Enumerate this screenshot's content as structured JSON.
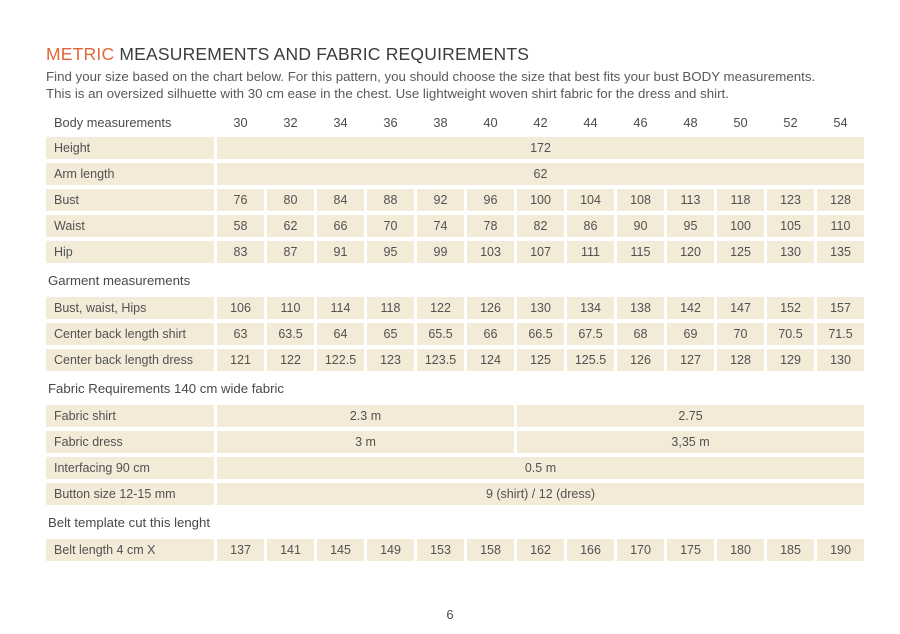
{
  "colors": {
    "accent": "#e0673a",
    "cell_bg": "#f3ead8"
  },
  "header": {
    "title_highlight": "METRIC",
    "title_rest": "MEASUREMENTS AND FABRIC REQUIREMENTS",
    "intro_line1": "Find your size based on the chart below. For this pattern, you should choose the size that best fits your bust BODY measurements.",
    "intro_line2": "This is an oversized silhuette with 30 cm ease in the chest. Use lightweight woven shirt fabric for the dress and shirt."
  },
  "table": {
    "header": {
      "label": "Body measurements",
      "sizes": [
        "30",
        "32",
        "34",
        "36",
        "38",
        "40",
        "42",
        "44",
        "46",
        "48",
        "50",
        "52",
        "54"
      ]
    },
    "rows": [
      {
        "type": "data",
        "label": "Height",
        "span_all": "172"
      },
      {
        "type": "data",
        "label": "Arm length",
        "span_all": "62"
      },
      {
        "type": "data",
        "label": "Bust",
        "values": [
          "76",
          "80",
          "84",
          "88",
          "92",
          "96",
          "100",
          "104",
          "108",
          "113",
          "118",
          "123",
          "128"
        ]
      },
      {
        "type": "data",
        "label": "Waist",
        "values": [
          "58",
          "62",
          "66",
          "70",
          "74",
          "78",
          "82",
          "86",
          "90",
          "95",
          "100",
          "105",
          "110"
        ]
      },
      {
        "type": "data",
        "label": "Hip",
        "values": [
          "83",
          "87",
          "91",
          "95",
          "99",
          "103",
          "107",
          "111",
          "115",
          "120",
          "125",
          "130",
          "135"
        ]
      },
      {
        "type": "section",
        "label": "Garment measurements"
      },
      {
        "type": "data",
        "label": "Bust, waist, Hips",
        "values": [
          "106",
          "110",
          "114",
          "118",
          "122",
          "126",
          "130",
          "134",
          "138",
          "142",
          "147",
          "152",
          "157"
        ]
      },
      {
        "type": "data",
        "label": "Center back length shirt",
        "values": [
          "63",
          "63.5",
          "64",
          "65",
          "65.5",
          "66",
          "66.5",
          "67.5",
          "68",
          "69",
          "70",
          "70.5",
          "71.5"
        ]
      },
      {
        "type": "data",
        "label": "Center back length dress",
        "values": [
          "121",
          "122",
          "122.5",
          "123",
          "123.5",
          "124",
          "125",
          "125.5",
          "126",
          "127",
          "128",
          "129",
          "130"
        ]
      },
      {
        "type": "section",
        "label": "Fabric Requirements 140 cm wide fabric"
      },
      {
        "type": "data",
        "label": "Fabric shirt",
        "span_left": "2.3 m",
        "span_right": "2.75"
      },
      {
        "type": "data",
        "label": "Fabric dress",
        "span_left": "3 m",
        "span_right": "3,35 m"
      },
      {
        "type": "data",
        "label": "Interfacing 90 cm",
        "span_all": "0.5 m"
      },
      {
        "type": "data",
        "label": "Button size 12-15 mm",
        "span_all": "9 (shirt) / 12 (dress)"
      },
      {
        "type": "section",
        "label": "Belt template cut this lenght"
      },
      {
        "type": "data",
        "label": "Belt length 4 cm X",
        "values": [
          "137",
          "141",
          "145",
          "149",
          "153",
          "158",
          "162",
          "166",
          "170",
          "175",
          "180",
          "185",
          "190"
        ]
      }
    ]
  },
  "footer": {
    "page_number": "6"
  }
}
